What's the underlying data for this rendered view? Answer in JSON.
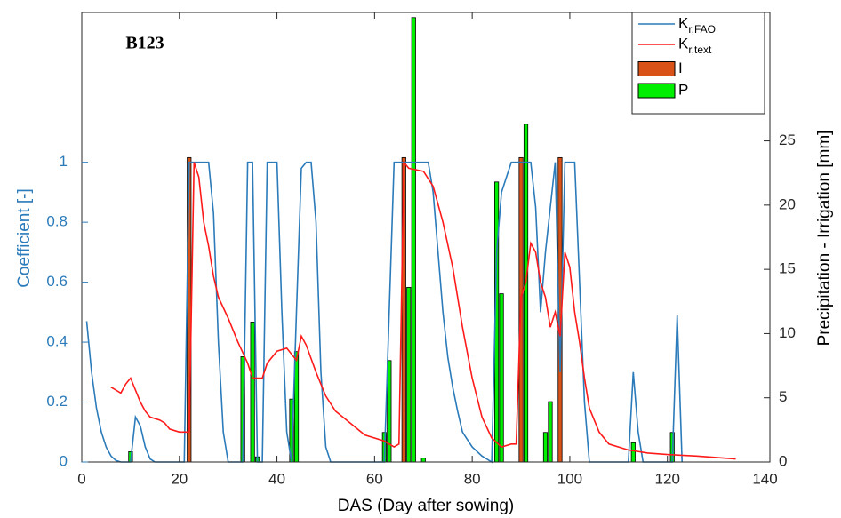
{
  "chart_data": {
    "type": "combo",
    "annotation": "B123",
    "xlabel": "DAS (Day after sowing)",
    "ylabel": "Coefficient [-]",
    "y2label": "Precipitation - Irrigation [mm]",
    "xlim": [
      0,
      141
    ],
    "xticks": [
      0,
      20,
      40,
      60,
      80,
      100,
      120,
      140
    ],
    "ylim": [
      0,
      1.5
    ],
    "yticks": [
      0,
      0.2,
      0.4,
      0.6,
      0.8,
      1
    ],
    "y2lim": [
      0,
      35
    ],
    "y2ticks": [
      0,
      5,
      10,
      15,
      20,
      25
    ],
    "legend": "upper-right",
    "axis_color": "#2b7bba",
    "series": [
      {
        "name": "Kr,FAO",
        "type": "line",
        "color": "#2b7bba",
        "x": [
          1,
          2,
          3,
          4,
          5,
          6,
          7,
          8,
          10,
          11,
          12,
          13,
          14,
          15,
          21,
          22,
          23,
          26,
          27,
          28,
          29,
          30,
          33,
          34,
          35,
          36,
          37,
          38,
          40,
          41,
          42,
          43,
          44,
          45,
          46,
          47,
          48,
          49,
          50,
          51,
          62,
          63,
          64,
          71,
          72,
          73,
          74,
          75,
          76,
          77,
          78,
          80,
          82,
          84,
          85,
          86,
          88,
          92,
          93,
          94,
          95,
          96,
          97,
          98,
          99,
          101,
          102,
          103,
          104,
          112,
          113,
          114,
          115,
          121,
          122,
          123
        ],
        "values": [
          0.47,
          0.3,
          0.18,
          0.1,
          0.05,
          0.02,
          0.005,
          0,
          0,
          0.15,
          0.12,
          0.05,
          0.01,
          0,
          0,
          1,
          1,
          1,
          0.83,
          0.4,
          0.1,
          0,
          0,
          1,
          1,
          0,
          0,
          1,
          1,
          0.5,
          0.1,
          0,
          0.5,
          0.98,
          1,
          1,
          0.8,
          0.3,
          0.05,
          0,
          0,
          0.5,
          1,
          1,
          0.9,
          0.7,
          0.5,
          0.35,
          0.25,
          0.17,
          0.1,
          0.05,
          0.02,
          0,
          0.7,
          0.9,
          1,
          1,
          0.85,
          0.5,
          0.7,
          0.85,
          1,
          0.3,
          1,
          1,
          0.6,
          0.2,
          0,
          0,
          0.3,
          0.1,
          0,
          0,
          0.49,
          0
        ]
      },
      {
        "name": "Kr,text",
        "type": "line",
        "color": "#ff1a1a",
        "x": [
          6,
          7,
          8,
          9,
          10,
          11,
          12,
          13,
          14,
          16,
          17,
          18,
          20,
          22,
          23,
          24,
          25,
          26,
          27,
          28,
          30,
          32,
          34,
          35,
          37,
          38,
          40,
          42,
          43,
          44,
          45,
          46,
          48,
          50,
          52,
          55,
          58,
          62,
          64,
          65,
          66,
          67,
          70,
          72,
          74,
          76,
          78,
          80,
          82,
          84,
          86,
          88,
          89,
          90,
          91,
          92,
          93,
          94,
          95,
          96,
          97,
          98,
          99,
          100,
          101,
          102,
          103,
          104,
          106,
          108,
          112,
          116,
          120,
          126,
          130,
          134
        ],
        "values": [
          0.25,
          0.24,
          0.23,
          0.26,
          0.28,
          0.24,
          0.2,
          0.17,
          0.15,
          0.14,
          0.13,
          0.11,
          0.1,
          0.1,
          1,
          0.95,
          0.8,
          0.72,
          0.62,
          0.55,
          0.48,
          0.4,
          0.33,
          0.28,
          0.28,
          0.33,
          0.37,
          0.38,
          0.36,
          0.34,
          0.42,
          0.39,
          0.3,
          0.22,
          0.17,
          0.13,
          0.09,
          0.07,
          0.05,
          0.06,
          1,
          0.98,
          0.97,
          0.92,
          0.8,
          0.65,
          0.45,
          0.28,
          0.15,
          0.08,
          0.05,
          0.06,
          0.06,
          0.55,
          0.6,
          0.73,
          0.7,
          0.6,
          0.55,
          0.45,
          0.5,
          0.42,
          0.7,
          0.65,
          0.5,
          0.4,
          0.28,
          0.18,
          0.1,
          0.06,
          0.04,
          0.03,
          0.025,
          0.02,
          0.015,
          0.01
        ]
      },
      {
        "name": "I",
        "type": "bar",
        "axis": "y2",
        "color": "#d95319",
        "x": [
          22,
          66,
          90,
          98
        ],
        "values": [
          23.7,
          23.7,
          23.7,
          23.7
        ]
      },
      {
        "name": "P",
        "type": "bar",
        "axis": "y2",
        "color": "#00ee00",
        "x": [
          10,
          33,
          35,
          36,
          43,
          44,
          62,
          63,
          67,
          68,
          70,
          85,
          86,
          91,
          95,
          96,
          113,
          121
        ],
        "values": [
          0.8,
          8.2,
          10.9,
          0.4,
          4.9,
          8.6,
          2.3,
          7.9,
          13.6,
          34.6,
          0.3,
          21.8,
          13.1,
          26.3,
          2.3,
          4.7,
          1.5,
          2.3
        ]
      }
    ]
  }
}
